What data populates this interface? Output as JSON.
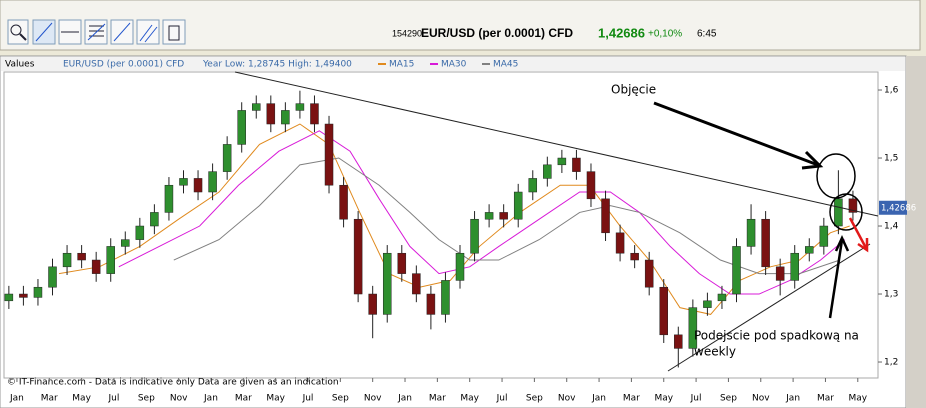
{
  "toolbar": {
    "code": "154290",
    "instrument": "EUR/USD (per 0.0001) CFD",
    "price": "1,42686",
    "change": "+0,10%",
    "time": "6:45"
  },
  "chart_data": {
    "type": "candlestick",
    "legend_title": "Values",
    "year_range": "Year Low: 1,28745 High: 1,49400",
    "candles": {
      "name": "EUR/USD (per 0.0001) CFD",
      "up_color": "#2e8f2e",
      "down_color": "#7a1212",
      "x": [
        -0.5,
        0.4,
        1.3,
        2.2,
        3.1,
        4.0,
        4.9,
        5.8,
        6.7,
        7.6,
        8.5,
        9.4,
        10.3,
        11.2,
        12.1,
        13.0,
        13.9,
        14.8,
        15.7,
        16.6,
        17.5,
        18.4,
        19.3,
        20.2,
        21.1,
        22.0,
        22.9,
        23.8,
        24.7,
        25.6,
        26.5,
        27.4,
        28.3,
        29.2,
        30.1,
        31.0,
        31.9,
        32.8,
        33.7,
        34.6,
        35.5,
        36.4,
        37.3,
        38.2,
        39.1,
        40.0,
        40.9,
        41.8,
        42.7,
        43.6,
        44.5,
        45.4,
        46.3,
        47.2,
        48.1,
        49.0,
        49.9,
        50.8,
        51.7
      ],
      "open": [
        1.29,
        1.3,
        1.295,
        1.31,
        1.34,
        1.36,
        1.35,
        1.33,
        1.37,
        1.38,
        1.4,
        1.42,
        1.46,
        1.47,
        1.45,
        1.48,
        1.52,
        1.57,
        1.58,
        1.55,
        1.57,
        1.58,
        1.55,
        1.46,
        1.41,
        1.3,
        1.27,
        1.36,
        1.33,
        1.3,
        1.27,
        1.32,
        1.36,
        1.41,
        1.42,
        1.41,
        1.45,
        1.47,
        1.49,
        1.5,
        1.48,
        1.44,
        1.39,
        1.36,
        1.35,
        1.31,
        1.24,
        1.22,
        1.28,
        1.29,
        1.3,
        1.37,
        1.41,
        1.34,
        1.32,
        1.36,
        1.37,
        1.4,
        1.44
      ],
      "high": [
        1.312,
        1.312,
        1.322,
        1.352,
        1.372,
        1.372,
        1.362,
        1.382,
        1.392,
        1.412,
        1.432,
        1.472,
        1.482,
        1.482,
        1.492,
        1.532,
        1.582,
        1.592,
        1.592,
        1.582,
        1.599,
        1.592,
        1.562,
        1.472,
        1.422,
        1.312,
        1.372,
        1.372,
        1.342,
        1.312,
        1.332,
        1.372,
        1.422,
        1.432,
        1.432,
        1.462,
        1.482,
        1.502,
        1.512,
        1.512,
        1.492,
        1.452,
        1.402,
        1.372,
        1.362,
        1.322,
        1.252,
        1.292,
        1.302,
        1.312,
        1.382,
        1.432,
        1.422,
        1.352,
        1.372,
        1.382,
        1.412,
        1.482,
        1.452
      ],
      "low": [
        1.278,
        1.283,
        1.283,
        1.298,
        1.328,
        1.338,
        1.318,
        1.318,
        1.358,
        1.368,
        1.388,
        1.408,
        1.448,
        1.438,
        1.438,
        1.468,
        1.508,
        1.558,
        1.538,
        1.538,
        1.558,
        1.538,
        1.448,
        1.398,
        1.288,
        1.235,
        1.258,
        1.318,
        1.288,
        1.248,
        1.258,
        1.308,
        1.348,
        1.398,
        1.398,
        1.398,
        1.438,
        1.458,
        1.478,
        1.468,
        1.428,
        1.378,
        1.348,
        1.338,
        1.298,
        1.228,
        1.192,
        1.208,
        1.268,
        1.278,
        1.288,
        1.358,
        1.328,
        1.298,
        1.308,
        1.348,
        1.358,
        1.388,
        1.408
      ],
      "close": [
        1.3,
        1.295,
        1.31,
        1.34,
        1.36,
        1.35,
        1.33,
        1.37,
        1.38,
        1.4,
        1.42,
        1.46,
        1.47,
        1.45,
        1.48,
        1.52,
        1.57,
        1.58,
        1.55,
        1.57,
        1.58,
        1.55,
        1.46,
        1.41,
        1.3,
        1.27,
        1.36,
        1.33,
        1.3,
        1.27,
        1.32,
        1.36,
        1.41,
        1.42,
        1.41,
        1.45,
        1.47,
        1.49,
        1.5,
        1.48,
        1.44,
        1.39,
        1.36,
        1.35,
        1.31,
        1.24,
        1.22,
        1.28,
        1.29,
        1.3,
        1.37,
        1.41,
        1.34,
        1.32,
        1.36,
        1.37,
        1.4,
        1.44,
        1.42
      ]
    },
    "series": [
      {
        "name": "MA15",
        "color": "#e08a1e",
        "x": [
          2.6,
          5.1,
          7.6,
          10.0,
          12.5,
          15.0,
          17.5,
          19.3,
          21.2,
          23.0,
          24.9,
          26.8,
          28.6,
          31.1,
          33.6,
          35.4,
          37.3,
          39.1,
          41.0,
          42.9,
          44.7,
          46.6,
          48.4,
          50.3,
          51.5
        ],
        "values": [
          1.33,
          1.34,
          1.37,
          1.41,
          1.45,
          1.52,
          1.55,
          1.52,
          1.42,
          1.33,
          1.31,
          1.32,
          1.37,
          1.42,
          1.46,
          1.46,
          1.4,
          1.35,
          1.28,
          1.27,
          1.32,
          1.34,
          1.35,
          1.39,
          1.4
        ]
      },
      {
        "name": "MA30",
        "color": "#d81bd8",
        "x": [
          6.3,
          8.8,
          11.3,
          13.7,
          16.2,
          18.7,
          20.6,
          22.4,
          24.3,
          26.1,
          28.0,
          29.8,
          32.3,
          34.8,
          36.7,
          38.5,
          40.4,
          42.2,
          44.1,
          45.9,
          47.8,
          49.7,
          51.2
        ],
        "values": [
          1.34,
          1.37,
          1.4,
          1.46,
          1.51,
          1.54,
          1.51,
          1.44,
          1.37,
          1.33,
          1.34,
          1.37,
          1.41,
          1.45,
          1.45,
          1.42,
          1.37,
          1.33,
          1.3,
          1.3,
          1.32,
          1.35,
          1.38
        ]
      },
      {
        "name": "MA45",
        "color": "#808080",
        "x": [
          9.7,
          12.5,
          15.0,
          17.5,
          19.9,
          22.4,
          24.3,
          26.1,
          28.0,
          29.8,
          32.3,
          34.8,
          36.7,
          38.5,
          41.0,
          43.5,
          45.9,
          48.4,
          50.9
        ],
        "values": [
          1.35,
          1.38,
          1.43,
          1.49,
          1.5,
          1.46,
          1.42,
          1.38,
          1.35,
          1.35,
          1.38,
          1.42,
          1.43,
          1.42,
          1.39,
          1.35,
          1.33,
          1.33,
          1.35
        ]
      }
    ],
    "last_price": {
      "value": 1.42686,
      "label": "1,42686"
    },
    "xlim": [
      -0.8,
      53.25
    ],
    "ylim": [
      1.1765,
      1.6265
    ],
    "xticks": [
      {
        "value": 0,
        "label": "Jan"
      },
      {
        "value": 2,
        "label": "Mar"
      },
      {
        "value": 4,
        "label": "May"
      },
      {
        "value": 6,
        "label": "Jul"
      },
      {
        "value": 8,
        "label": "Sep"
      },
      {
        "value": 10,
        "label": "Nov"
      },
      {
        "value": 12,
        "label": "Jan"
      },
      {
        "value": 14,
        "label": "Mar"
      },
      {
        "value": 16,
        "label": "May"
      },
      {
        "value": 18,
        "label": "Jul"
      },
      {
        "value": 20,
        "label": "Sep"
      },
      {
        "value": 22,
        "label": "Nov"
      },
      {
        "value": 24,
        "label": "Jan"
      },
      {
        "value": 26,
        "label": "Mar"
      },
      {
        "value": 28,
        "label": "May"
      },
      {
        "value": 30,
        "label": "Jul"
      },
      {
        "value": 32,
        "label": "Sep"
      },
      {
        "value": 34,
        "label": "Nov"
      },
      {
        "value": 36,
        "label": "Jan"
      },
      {
        "value": 38,
        "label": "Mar"
      },
      {
        "value": 40,
        "label": "May"
      },
      {
        "value": 42,
        "label": "Jul"
      },
      {
        "value": 44,
        "label": "Sep"
      },
      {
        "value": 46,
        "label": "Nov"
      },
      {
        "value": 48,
        "label": "Jan"
      },
      {
        "value": 50,
        "label": "Mar"
      },
      {
        "value": 52,
        "label": "May"
      }
    ],
    "yticks": [
      {
        "value": 1.2,
        "label": "1,2"
      },
      {
        "value": 1.3,
        "label": "1,3"
      },
      {
        "value": 1.4,
        "label": "1,4"
      },
      {
        "value": 1.5,
        "label": "1,5"
      },
      {
        "value": 1.6,
        "label": "1,6"
      }
    ],
    "annotations": [
      "Objęcie",
      "Podejscie pod spadkową na",
      "weekly"
    ],
    "footer": "© IT-Finance.com - Data is indicative only Data are given as an indication"
  }
}
